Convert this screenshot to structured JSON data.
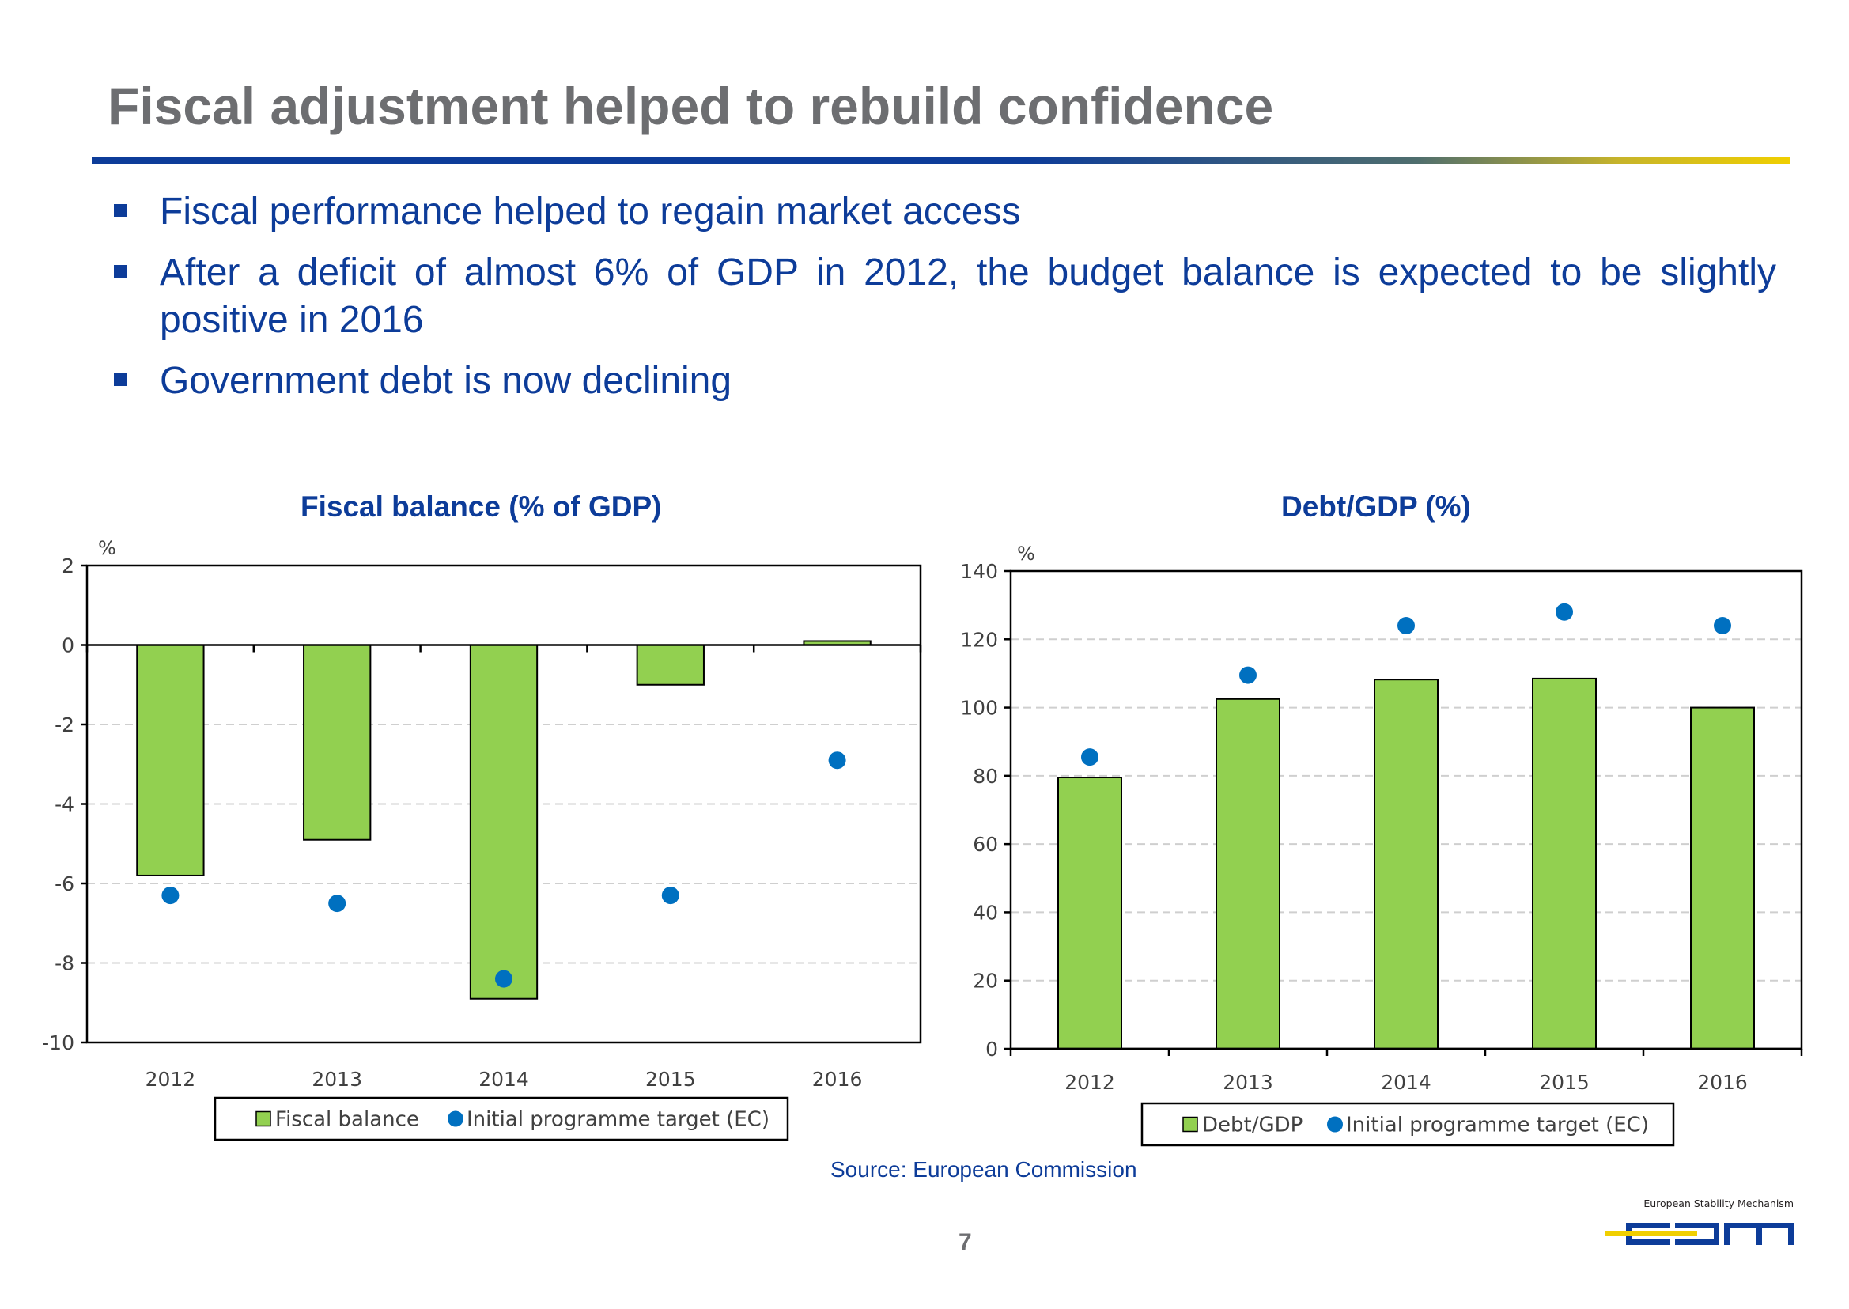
{
  "slide": {
    "title": "Fiscal adjustment helped to rebuild confidence",
    "bullets": [
      "Fiscal performance helped to regain market access",
      "After a deficit of almost 6% of GDP in 2012, the budget balance is expected to be slightly positive in 2016",
      "Government debt is now declining"
    ],
    "source": "Source: European Commission",
    "page_number": "7",
    "logo": {
      "tagline": "European Stability Mechanism",
      "wordmark": "esm"
    }
  },
  "colors": {
    "bar": "#92d050",
    "marker": "#0070c0",
    "title_blue": "#0d3c99",
    "title_gray": "#6d6e71",
    "logo_blue": "#0d3c99",
    "logo_yellow": "#f0cf00"
  },
  "chart_data": [
    {
      "type": "bar",
      "title": "Fiscal balance (% of GDP)",
      "unit_label": "%",
      "categories": [
        "2012",
        "2013",
        "2014",
        "2015",
        "2016"
      ],
      "series": [
        {
          "name": "Fiscal balance",
          "kind": "bar",
          "values": [
            -5.8,
            -4.9,
            -8.9,
            -1.0,
            0.1
          ]
        },
        {
          "name": "Initial programme target (EC)",
          "kind": "marker",
          "values": [
            -6.3,
            -6.5,
            -8.4,
            -6.3,
            -2.9
          ]
        }
      ],
      "ylim": [
        -10,
        2
      ],
      "yticks": [
        2,
        0,
        -2,
        -4,
        -6,
        -8,
        -10
      ],
      "grid": true,
      "legend": "bottom"
    },
    {
      "type": "bar",
      "title": "Debt/GDP (%)",
      "unit_label": "%",
      "categories": [
        "2012",
        "2013",
        "2014",
        "2015",
        "2016"
      ],
      "series": [
        {
          "name": "Debt/GDP",
          "kind": "bar",
          "values": [
            79.5,
            102.5,
            108.2,
            108.5,
            100
          ]
        },
        {
          "name": "Initial programme target (EC)",
          "kind": "marker",
          "values": [
            85.5,
            109.5,
            124,
            128,
            124
          ]
        }
      ],
      "ylim": [
        0,
        140
      ],
      "yticks": [
        140,
        120,
        100,
        80,
        60,
        40,
        20,
        0
      ],
      "grid": true,
      "legend": "bottom"
    }
  ]
}
